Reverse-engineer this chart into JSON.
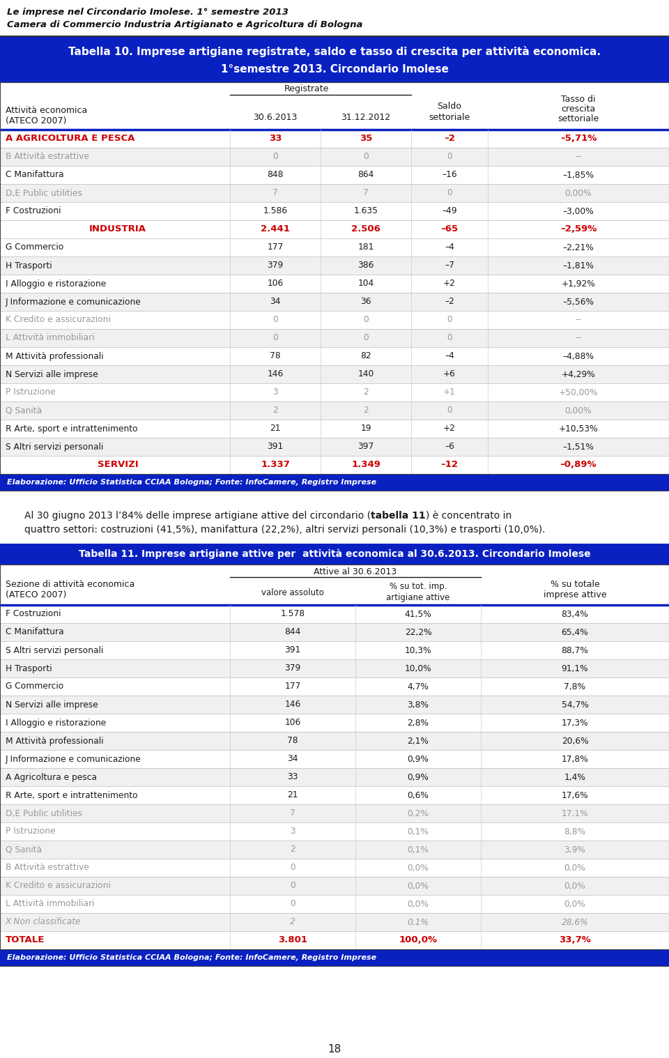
{
  "page_title_line1": "Le imprese nel Circondario Imolese. 1° semestre 2013",
  "page_title_line2": "Camera di Commercio Industria Artigianato e Agricoltura di Bologna",
  "table10_title_line1": "Tabella 10. Imprese artigiane registrate, saldo e tasso di crescita per attività economica.",
  "table10_title_line2": "1°semestre 2013. Circondario Imolese",
  "table10_rows": [
    [
      "A AGRICOLTURA E PESCA",
      "33",
      "35",
      "–2",
      "–5,71%",
      "red_bold"
    ],
    [
      "B Attività estrattive",
      "0",
      "0",
      "0",
      "--",
      "gray"
    ],
    [
      "C Manifattura",
      "848",
      "864",
      "–16",
      "–1,85%",
      "normal"
    ],
    [
      "D,E Public utilities",
      "7",
      "7",
      "0",
      "0,00%",
      "gray"
    ],
    [
      "F Costruzioni",
      "1.586",
      "1.635",
      "–49",
      "–3,00%",
      "normal"
    ],
    [
      "INDUSTRIA",
      "2.441",
      "2.506",
      "–65",
      "–2,59%",
      "red_bold_center"
    ],
    [
      "G Commercio",
      "177",
      "181",
      "–4",
      "–2,21%",
      "normal"
    ],
    [
      "H Trasporti",
      "379",
      "386",
      "–7",
      "–1,81%",
      "normal"
    ],
    [
      "I Alloggio e ristorazione",
      "106",
      "104",
      "+2",
      "+1,92%",
      "normal"
    ],
    [
      "J Informazione e comunicazione",
      "34",
      "36",
      "–2",
      "–5,56%",
      "normal"
    ],
    [
      "K Credito e assicurazioni",
      "0",
      "0",
      "0",
      "--",
      "gray"
    ],
    [
      "L Attività immobiliari",
      "0",
      "0",
      "0",
      "--",
      "gray"
    ],
    [
      "M Attività professionali",
      "78",
      "82",
      "–4",
      "–4,88%",
      "normal"
    ],
    [
      "N Servizi alle imprese",
      "146",
      "140",
      "+6",
      "+4,29%",
      "normal"
    ],
    [
      "P Istruzione",
      "3",
      "2",
      "+1",
      "+50,00%",
      "gray"
    ],
    [
      "Q Sanità",
      "2",
      "2",
      "0",
      "0,00%",
      "gray"
    ],
    [
      "R Arte, sport e intrattenimento",
      "21",
      "19",
      "+2",
      "+10,53%",
      "normal"
    ],
    [
      "S Altri servizi personali",
      "391",
      "397",
      "–6",
      "–1,51%",
      "normal"
    ],
    [
      "SERVIZI",
      "1.337",
      "1.349",
      "–12",
      "–0,89%",
      "red_bold_center"
    ]
  ],
  "table10_footer": "Elaborazione: Ufficio Statistica CCIAA Bologna; Fonte: InfoCamere, Registro Imprese",
  "para_pre": "Al 30 giugno 2013 l’84% delle imprese artigiane attive del circondario (",
  "para_bold": "tabella 11",
  "para_post": ") è concentrato in",
  "para_line2": "quattro settori: costruzioni (41,5%), manifattura (22,2%), altri servizi personali (10,3%) e trasporti (10,0%).",
  "table11_title": "Tabella 11. Imprese artigiane attive per  attività economica al 30.6.2013. Circondario Imolese",
  "table11_rows": [
    [
      "F Costruzioni",
      "1.578",
      "41,5%",
      "83,4%",
      "normal"
    ],
    [
      "C Manifattura",
      "844",
      "22,2%",
      "65,4%",
      "normal"
    ],
    [
      "S Altri servizi personali",
      "391",
      "10,3%",
      "88,7%",
      "normal"
    ],
    [
      "H Trasporti",
      "379",
      "10,0%",
      "91,1%",
      "normal"
    ],
    [
      "G Commercio",
      "177",
      "4,7%",
      "7,8%",
      "normal"
    ],
    [
      "N Servizi alle imprese",
      "146",
      "3,8%",
      "54,7%",
      "normal"
    ],
    [
      "I Alloggio e ristorazione",
      "106",
      "2,8%",
      "17,3%",
      "normal"
    ],
    [
      "M Attività professionali",
      "78",
      "2,1%",
      "20,6%",
      "normal"
    ],
    [
      "J Informazione e comunicazione",
      "34",
      "0,9%",
      "17,8%",
      "normal"
    ],
    [
      "A Agricoltura e pesca",
      "33",
      "0,9%",
      "1,4%",
      "normal"
    ],
    [
      "R Arte, sport e intrattenimento",
      "21",
      "0,6%",
      "17,6%",
      "normal"
    ],
    [
      "D,E Public utilities",
      "7",
      "0,2%",
      "17,1%",
      "gray"
    ],
    [
      "P Istruzione",
      "3",
      "0,1%",
      "8,8%",
      "gray"
    ],
    [
      "Q Sanità",
      "2",
      "0,1%",
      "3,9%",
      "gray"
    ],
    [
      "B Attività estrattive",
      "0",
      "0,0%",
      "0,0%",
      "gray"
    ],
    [
      "K Credito e assicurazioni",
      "0",
      "0,0%",
      "0,0%",
      "gray"
    ],
    [
      "L Attività immobiliari",
      "0",
      "0,0%",
      "0,0%",
      "gray"
    ],
    [
      "X Non classificate",
      "2",
      "0,1%",
      "28,6%",
      "gray_italic"
    ],
    [
      "TOTALE",
      "3.801",
      "100,0%",
      "33,7%",
      "bold_red_totale"
    ]
  ],
  "table11_footer": "Elaborazione: Ufficio Statistica CCIAA Bologna; Fonte: InfoCamere, Registro Imprese",
  "page_number": "18",
  "blue_color": "#0A21C2",
  "red_color": "#CC0000",
  "gray_color": "#999999",
  "dark_color": "#1A1A1A",
  "border_color": "#444444"
}
